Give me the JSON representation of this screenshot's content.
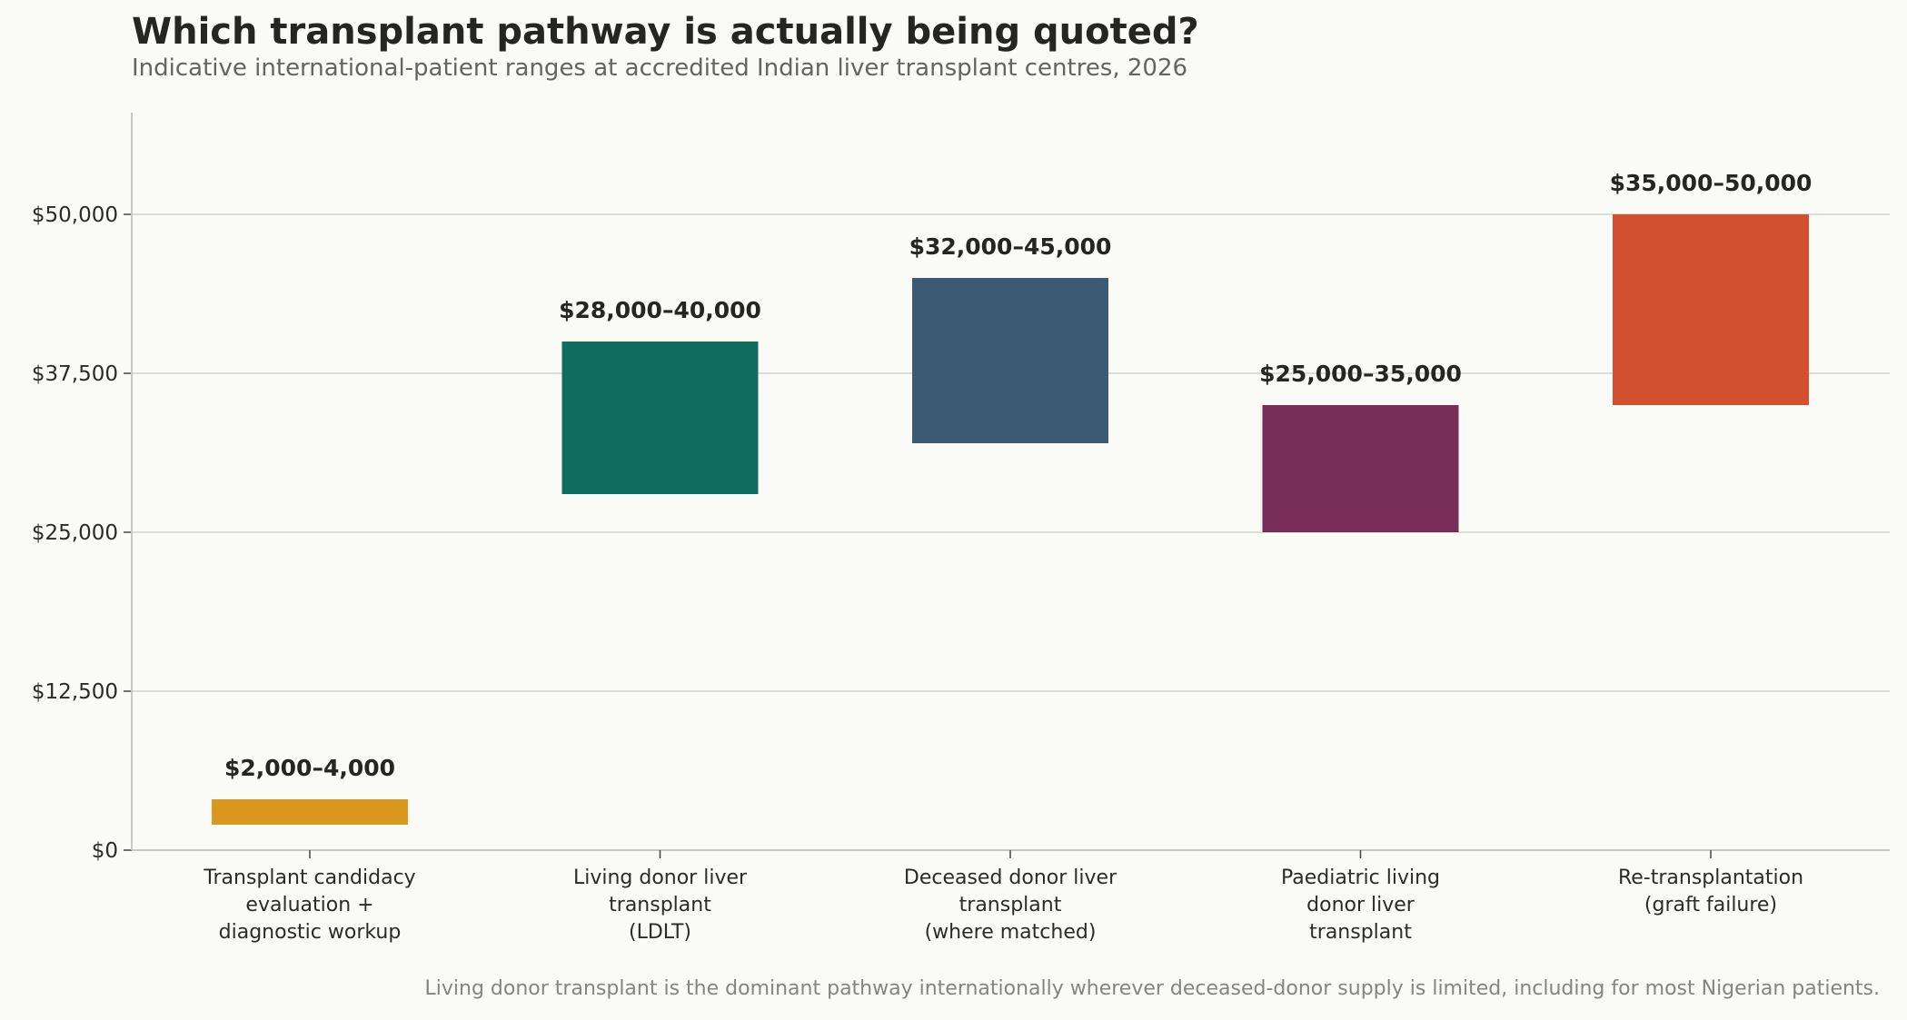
{
  "chart_data": {
    "type": "bar",
    "subtype": "floating-range",
    "title": "Which transplant pathway is actually being quoted?",
    "subtitle": "Indicative international-patient ranges at accredited Indian liver transplant centres, 2026",
    "footnote": "Living donor transplant is the dominant pathway internationally wherever deceased-donor supply is limited, including for most Nigerian patients.",
    "xlabel": "",
    "ylabel": "",
    "ylim": [
      0,
      58000
    ],
    "yticks": [
      0,
      12500,
      25000,
      37500,
      50000
    ],
    "ytick_labels": [
      "$0",
      "$12,500",
      "$25,000",
      "$37,500",
      "$50,000"
    ],
    "grid": "horizontal",
    "legend": "none",
    "categories": [
      [
        "Transplant candidacy",
        "evaluation +",
        "diagnostic workup"
      ],
      [
        "Living donor liver",
        "transplant",
        "(LDLT)"
      ],
      [
        "Deceased donor liver",
        "transplant",
        "(where matched)"
      ],
      [
        "Paediatric living",
        "donor liver",
        "transplant"
      ],
      [
        "Re-transplantation",
        "(graft failure)"
      ]
    ],
    "ranges": [
      {
        "low": 2000,
        "high": 4000,
        "label": "$2,000–4,000",
        "color": "#db9820"
      },
      {
        "low": 28000,
        "high": 40000,
        "label": "$28,000–40,000",
        "color": "#0f6e5e"
      },
      {
        "low": 32000,
        "high": 45000,
        "label": "$32,000–45,000",
        "color": "#3c5a73"
      },
      {
        "low": 25000,
        "high": 35000,
        "label": "$25,000–35,000",
        "color": "#772d58"
      },
      {
        "low": 35000,
        "high": 50000,
        "label": "$35,000–50,000",
        "color": "#d24f30"
      }
    ]
  }
}
